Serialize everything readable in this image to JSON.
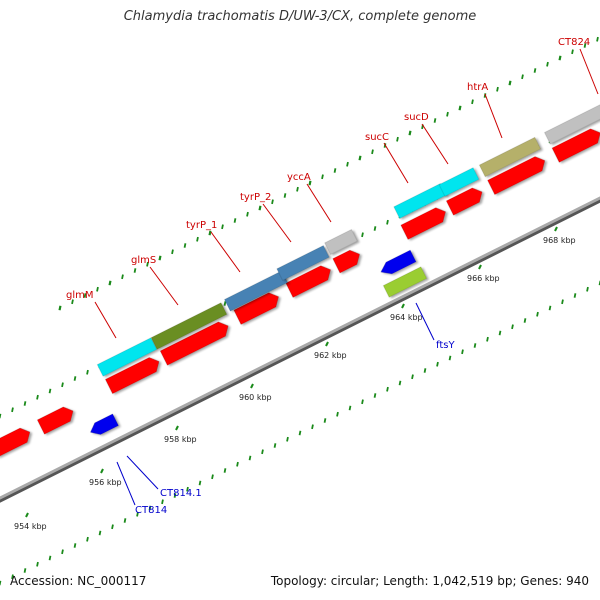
{
  "title": "Chlamydia trachomatis D/UW-3/CX, complete genome",
  "footer": {
    "accession": "Accession: NC_000117",
    "summary": "Topology: circular; Length: 1,042,519 bp; Genes: 940"
  },
  "colors": {
    "forward_label": "#cc0000",
    "reverse_label": "#0000cc",
    "backbone": "#a9a9a9",
    "tick": "#1a8a1a",
    "cds": "#ff0000"
  },
  "forward_genes": [
    {
      "name": "glmM",
      "color": "#00e5ee"
    },
    {
      "name": "glmS",
      "color": "#6b8e23"
    },
    {
      "name": "tyrP_1",
      "color": "#4682b4"
    },
    {
      "name": "tyrP_2",
      "color": "#4682b4"
    },
    {
      "name": "yccA",
      "color": "#c0c0c0"
    },
    {
      "name": "sucC",
      "color": "#00e5ee"
    },
    {
      "name": "sucD",
      "color": "#00e5ee"
    },
    {
      "name": "htrA",
      "color": "#b5b06a"
    },
    {
      "name": "CT824",
      "color": "#c0c0c0"
    }
  ],
  "reverse_genes": [
    {
      "name": "CT814",
      "color": "#0000ee"
    },
    {
      "name": "CT814.1",
      "color": "#0000ee"
    },
    {
      "name": "ftsY",
      "color": "#9acd32"
    }
  ],
  "kbp_labels": [
    "954 kbp",
    "956 kbp",
    "958 kbp",
    "960 kbp",
    "962 kbp",
    "964 kbp",
    "966 kbp",
    "968 kbp"
  ]
}
